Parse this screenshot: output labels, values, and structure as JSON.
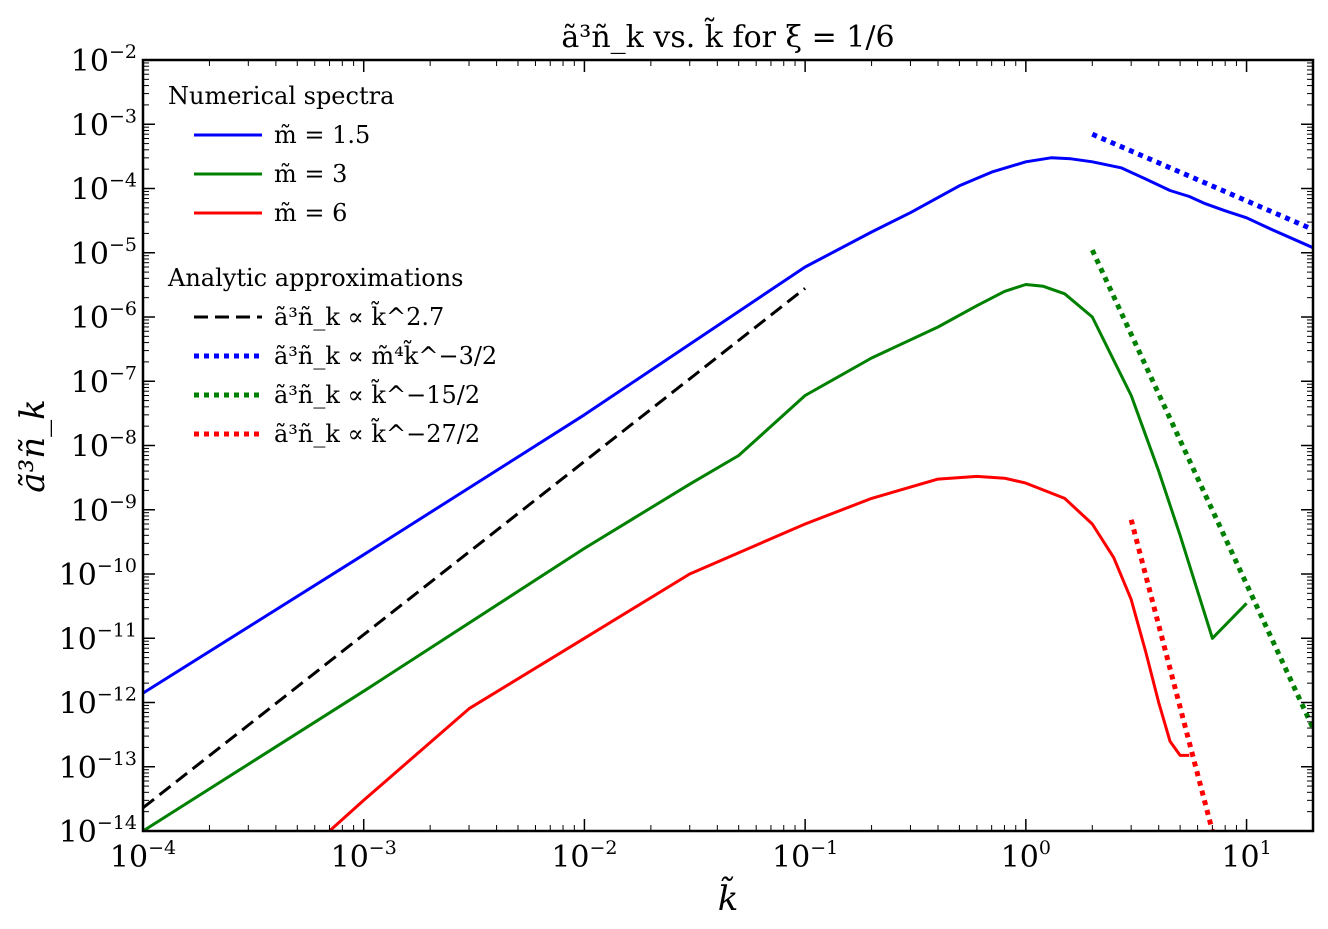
{
  "chart_data": {
    "type": "line",
    "title": "ã³ñ_k vs. k̃ for ξ = 1/6",
    "xlabel": "k̃",
    "ylabel": "ã³ñ_k",
    "xscale": "log",
    "yscale": "log",
    "xlim": [
      0.0001,
      20
    ],
    "ylim": [
      1e-14,
      0.01
    ],
    "x_tick_values": [
      0.0001,
      0.001,
      0.01,
      0.1,
      1,
      10
    ],
    "x_tick_labels": [
      {
        "base": "10",
        "exp": "−4"
      },
      {
        "base": "10",
        "exp": "−3"
      },
      {
        "base": "10",
        "exp": "−2"
      },
      {
        "base": "10",
        "exp": "−1"
      },
      {
        "base": "10",
        "exp": "0"
      },
      {
        "base": "10",
        "exp": "1"
      }
    ],
    "y_tick_values": [
      1e-14,
      1e-13,
      1e-12,
      1e-11,
      1e-10,
      1e-09,
      1e-08,
      1e-07,
      1e-06,
      1e-05,
      0.0001,
      0.001,
      0.01
    ],
    "y_tick_labels": [
      {
        "base": "10",
        "exp": "−14"
      },
      {
        "base": "10",
        "exp": "−13"
      },
      {
        "base": "10",
        "exp": "−12"
      },
      {
        "base": "10",
        "exp": "−11"
      },
      {
        "base": "10",
        "exp": "−10"
      },
      {
        "base": "10",
        "exp": "−9"
      },
      {
        "base": "10",
        "exp": "−8"
      },
      {
        "base": "10",
        "exp": "−7"
      },
      {
        "base": "10",
        "exp": "−6"
      },
      {
        "base": "10",
        "exp": "−5"
      },
      {
        "base": "10",
        "exp": "−4"
      },
      {
        "base": "10",
        "exp": "−3"
      },
      {
        "base": "10",
        "exp": "−2"
      }
    ],
    "legend": {
      "placement": "top-left",
      "sections": [
        {
          "title": "Numerical spectra",
          "entries": [
            {
              "label": "m̃ = 1.5",
              "series": "m1.5"
            },
            {
              "label": "m̃ = 3",
              "series": "m3"
            },
            {
              "label": "m̃ = 6",
              "series": "m6"
            }
          ]
        },
        {
          "title": "Analytic approximations",
          "entries": [
            {
              "label": "ã³ñ_k ∝ k̃^2.7",
              "series": "fit-2.7"
            },
            {
              "label": "ã³ñ_k ∝ m̃⁴k̃^−3/2",
              "series": "fit-blue"
            },
            {
              "label": "ã³ñ_k ∝ k̃^−15/2",
              "series": "fit-green"
            },
            {
              "label": "ã³ñ_k ∝ k̃^−27/2",
              "series": "fit-red"
            }
          ]
        }
      ]
    },
    "series": [
      {
        "id": "m1.5",
        "name": "m̃ = 1.5",
        "color": "#0000ff",
        "style": "solid",
        "points": [
          [
            0.0001,
            1.4e-12
          ],
          [
            0.001,
            2e-10
          ],
          [
            0.01,
            3e-08
          ],
          [
            0.1,
            6e-06
          ],
          [
            0.2,
            2.1e-05
          ],
          [
            0.3,
            4.2e-05
          ],
          [
            0.5,
            0.00011
          ],
          [
            0.7,
            0.00018
          ],
          [
            1.0,
            0.00026
          ],
          [
            1.3,
            0.0003
          ],
          [
            1.6,
            0.00029
          ],
          [
            2.0,
            0.00026
          ],
          [
            2.7,
            0.00021
          ],
          [
            3.5,
            0.00014
          ],
          [
            4.5,
            9.3e-05
          ],
          [
            5.5,
            7.5e-05
          ],
          [
            6.5,
            5.8e-05
          ],
          [
            8.0,
            4.5e-05
          ],
          [
            10.0,
            3.5e-05
          ],
          [
            13.0,
            2.3e-05
          ],
          [
            20.0,
            1.2e-05
          ]
        ]
      },
      {
        "id": "m3",
        "name": "m̃ = 3",
        "color": "#008000",
        "style": "solid",
        "points": [
          [
            0.0001,
            1e-14
          ],
          [
            0.001,
            1.5e-12
          ],
          [
            0.01,
            2.5e-10
          ],
          [
            0.03,
            2.5e-09
          ],
          [
            0.05,
            7e-09
          ],
          [
            0.1,
            6e-08
          ],
          [
            0.2,
            2.3e-07
          ],
          [
            0.4,
            7e-07
          ],
          [
            0.6,
            1.5e-06
          ],
          [
            0.8,
            2.5e-06
          ],
          [
            1.0,
            3.2e-06
          ],
          [
            1.2,
            3e-06
          ],
          [
            1.5,
            2.3e-06
          ],
          [
            2.0,
            1e-06
          ],
          [
            3.0,
            6e-08
          ],
          [
            4.0,
            4e-09
          ],
          [
            5.0,
            4e-10
          ],
          [
            7.0,
            1e-11
          ],
          [
            10.0,
            3.5e-11
          ]
        ]
      },
      {
        "id": "m6",
        "name": "m̃ = 6",
        "color": "#ff0000",
        "style": "solid",
        "points": [
          [
            0.0007,
            1e-14
          ],
          [
            0.001,
            3e-14
          ],
          [
            0.003,
            8e-13
          ],
          [
            0.01,
            1e-11
          ],
          [
            0.03,
            1e-10
          ],
          [
            0.1,
            6e-10
          ],
          [
            0.2,
            1.5e-09
          ],
          [
            0.4,
            3e-09
          ],
          [
            0.6,
            3.3e-09
          ],
          [
            0.8,
            3.1e-09
          ],
          [
            1.0,
            2.6e-09
          ],
          [
            1.5,
            1.5e-09
          ],
          [
            2.0,
            6e-10
          ],
          [
            2.5,
            1.8e-10
          ],
          [
            3.0,
            4e-11
          ],
          [
            3.5,
            6e-12
          ],
          [
            4.0,
            1e-12
          ],
          [
            4.5,
            2.5e-13
          ],
          [
            5.0,
            1.5e-13
          ],
          [
            5.5,
            1.5e-13
          ]
        ]
      },
      {
        "id": "fit-2.7",
        "name": "ã³ñ_k ∝ k̃^2.7",
        "color": "#000000",
        "style": "dashed",
        "points": [
          [
            0.0001,
            2.3e-14
          ],
          [
            0.1,
            2.8e-06
          ]
        ]
      },
      {
        "id": "fit-blue",
        "name": "ã³ñ_k ∝ m̃⁴k̃^−3/2",
        "color": "#0000ff",
        "style": "dotted",
        "points": [
          [
            2.0,
            0.0007
          ],
          [
            20.0,
            2.3e-05
          ]
        ]
      },
      {
        "id": "fit-green",
        "name": "ã³ñ_k ∝ k̃^−15/2",
        "color": "#008000",
        "style": "dotted",
        "points": [
          [
            2.0,
            1.1e-05
          ],
          [
            20.0,
            4e-13
          ]
        ]
      },
      {
        "id": "fit-red",
        "name": "ã³ñ_k ∝ k̃^−27/2",
        "color": "#ff0000",
        "style": "dotted",
        "points": [
          [
            3.0,
            7e-10
          ],
          [
            7.0,
            1e-14
          ]
        ]
      }
    ]
  }
}
